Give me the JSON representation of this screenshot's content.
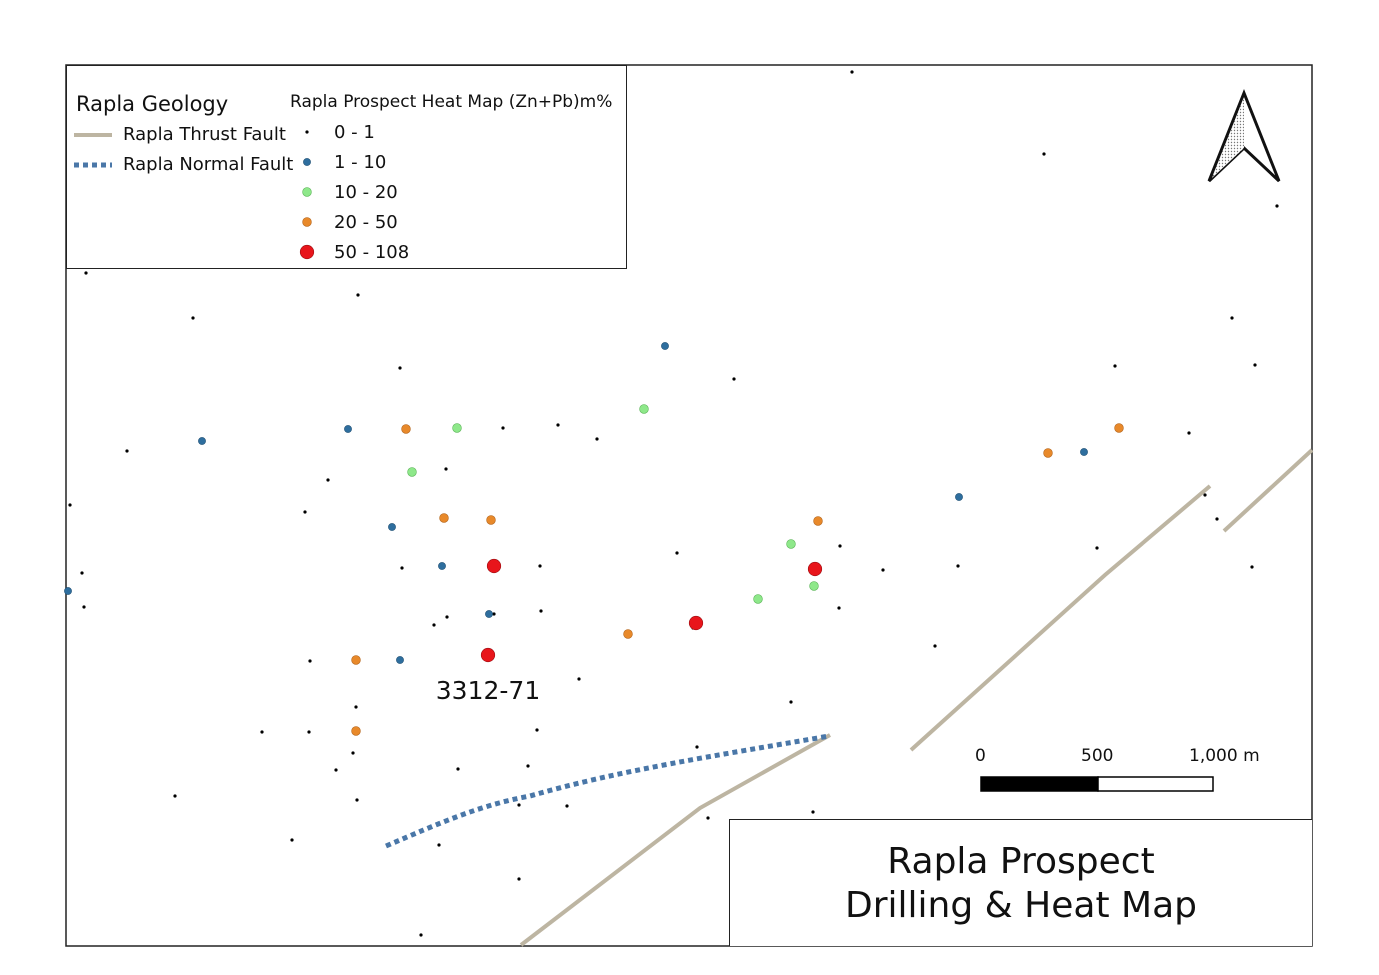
{
  "legend": {
    "geology_title": "Rapla Geology",
    "thrust_fault_label": "Rapla Thrust Fault",
    "normal_fault_label": "Rapla Normal Fault",
    "heatmap_title": "Rapla Prospect Heat Map (Zn+Pb)m%",
    "classes": [
      {
        "label": "0 - 1",
        "color": "#000000",
        "size": "tiny"
      },
      {
        "label": "1 - 10",
        "color": "#2e6e9e",
        "size": "small"
      },
      {
        "label": "10 - 20",
        "color": "#8ee88a",
        "size": "small"
      },
      {
        "label": "20 - 50",
        "color": "#e8892a",
        "size": "small"
      },
      {
        "label": "50 - 108",
        "color": "#e8151b",
        "size": "large"
      }
    ]
  },
  "colors": {
    "thrust_fault": "#bdb5a2",
    "normal_fault": "#4a77a8",
    "frame": "#222222"
  },
  "annotation": {
    "drillhole_label": "3312-71"
  },
  "scale_bar": {
    "labels": [
      "0",
      "500",
      "1,000 m"
    ]
  },
  "north_arrow": {
    "icon": "north-arrow-icon"
  },
  "title": {
    "line1": "Rapla Prospect",
    "line2": "Drilling & Heat Map"
  }
}
